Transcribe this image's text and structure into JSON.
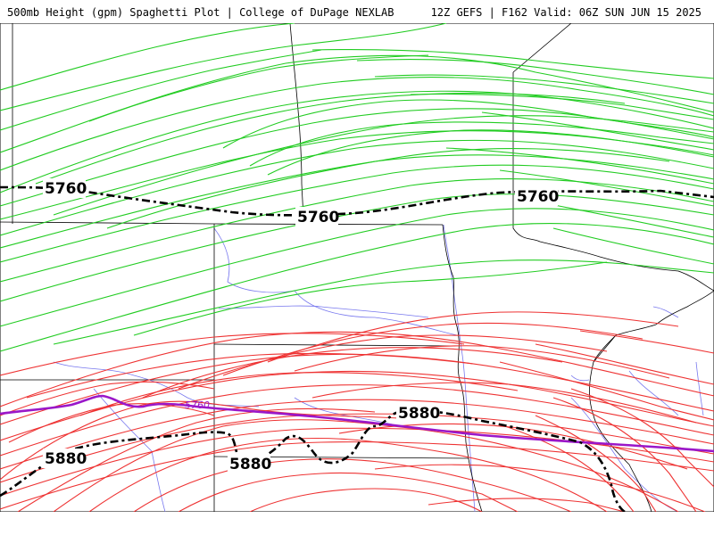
{
  "header": {
    "left_title": "500mb Height (gpm) Spaghetti Plot | College of DuPage NEXLAB",
    "right_title": "12Z GEFS | F162 Valid: 06Z SUN JUN 15 2025"
  },
  "colors": {
    "member_5760": "#22cc22",
    "member_5880": "#ee3333",
    "mean_contour": "#000000",
    "climo_5760": "#9a17c9",
    "state_borders": "#000000",
    "county_rivers": "#7777ee"
  },
  "contour_labels": {
    "mean_5760_a": "5760",
    "mean_5760_b": "5760",
    "mean_5760_c": "5760",
    "mean_5880_a": "5880",
    "mean_5880_b": "5880",
    "mean_5880_c": "5880",
    "climo_5760": "5760"
  }
}
